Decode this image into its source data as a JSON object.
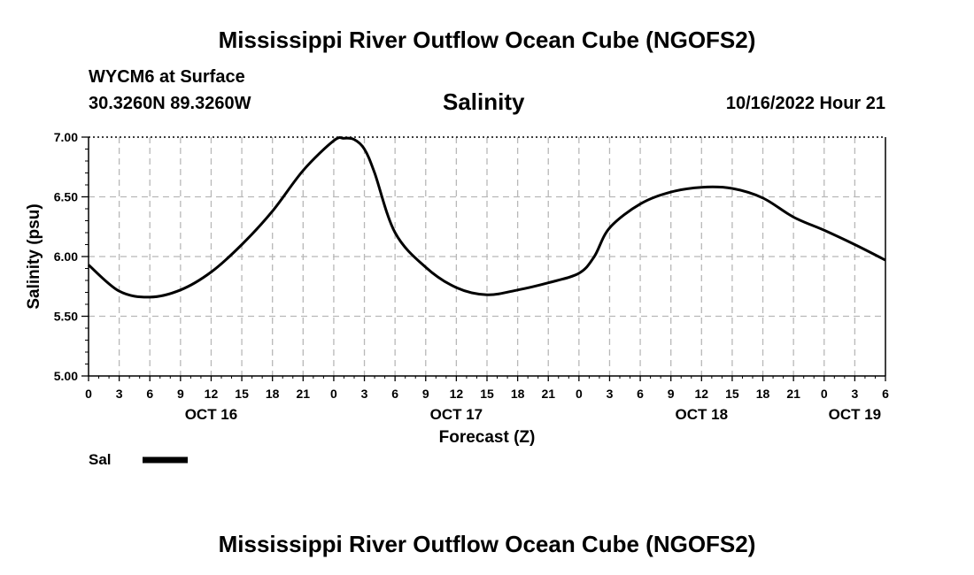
{
  "header": {
    "title": "Mississippi River Outflow Ocean Cube (NGOFS2)",
    "station": "WYCM6 at Surface",
    "coords": "30.3260N  89.3260W",
    "datetime": "10/16/2022 Hour 21"
  },
  "footer": {
    "title": "Mississippi River Outflow Ocean Cube (NGOFS2)"
  },
  "chart_data": {
    "type": "line",
    "title": "Salinity",
    "xlabel": "Forecast (Z)",
    "ylabel": "Salinity (psu)",
    "xlim": [
      0,
      78
    ],
    "ylim": [
      5.0,
      7.0
    ],
    "yticks": [
      "5.00",
      "5.50",
      "6.00",
      "6.50",
      "7.00"
    ],
    "ytick_values": [
      5.0,
      5.5,
      6.0,
      6.5,
      7.0
    ],
    "xtick_labels": [
      "0",
      "3",
      "6",
      "9",
      "12",
      "15",
      "18",
      "21",
      "0",
      "3",
      "6",
      "9",
      "12",
      "15",
      "18",
      "21",
      "0",
      "3",
      "6",
      "9",
      "12",
      "15",
      "18",
      "21",
      "0",
      "3",
      "6"
    ],
    "date_labels": [
      {
        "label": "OCT 16",
        "hour": 12
      },
      {
        "label": "OCT 17",
        "hour": 36
      },
      {
        "label": "OCT 18",
        "hour": 60
      },
      {
        "label": "OCT 19",
        "hour": 75
      }
    ],
    "grid": true,
    "legend": "bottom-left",
    "series": [
      {
        "name": "Sal",
        "color": "#000000",
        "x": [
          0,
          3,
          6,
          9,
          12,
          15,
          18,
          21,
          24,
          25,
          26,
          27,
          28,
          30,
          33,
          36,
          39,
          42,
          45,
          48,
          49.5,
          51,
          54,
          57,
          60,
          63,
          66,
          69,
          72,
          75,
          78
        ],
        "values": [
          5.93,
          5.71,
          5.66,
          5.72,
          5.87,
          6.1,
          6.38,
          6.72,
          6.97,
          6.99,
          6.98,
          6.9,
          6.7,
          6.2,
          5.91,
          5.74,
          5.68,
          5.72,
          5.78,
          5.86,
          6.0,
          6.24,
          6.44,
          6.54,
          6.58,
          6.57,
          6.49,
          6.33,
          6.22,
          6.1,
          5.97
        ]
      }
    ]
  }
}
